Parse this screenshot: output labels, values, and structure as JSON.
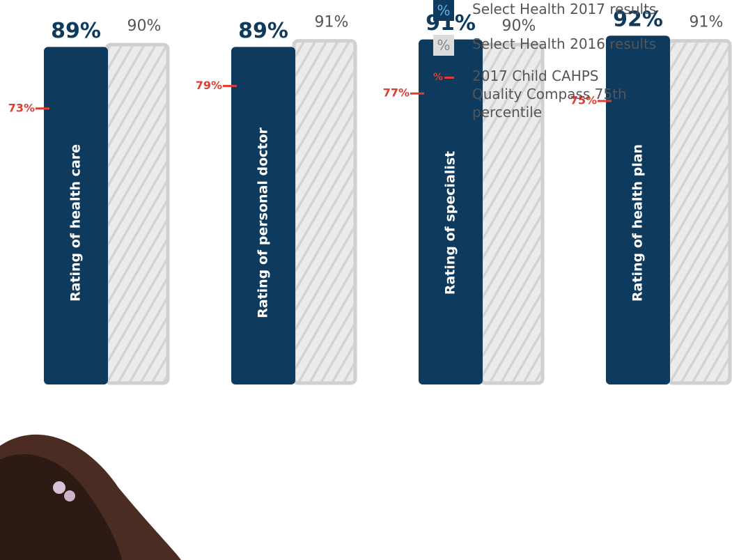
{
  "chart_data": {
    "type": "bar",
    "categories": [
      "Rating of health care",
      "Rating of personal doctor",
      "Rating of specialist",
      "Rating of health plan"
    ],
    "series": [
      {
        "name": "Select Health 2017 results",
        "color": "#0e3a5d",
        "values": [
          89,
          89,
          91,
          92
        ],
        "value_labels": [
          "89%",
          "89%",
          "91%",
          "92%"
        ]
      },
      {
        "name": "Select Health 2016 results",
        "color": "#dcdcdc",
        "values": [
          90,
          91,
          90,
          91
        ],
        "value_labels": [
          "90%",
          "91%",
          "90%",
          "91%"
        ]
      },
      {
        "name": "2017 Child CAHPS  Quality Compass 75th percentile",
        "color": "#e03c31",
        "values": [
          73,
          79,
          77,
          75
        ],
        "value_labels": [
          "73%",
          "79%",
          "77%",
          "75%"
        ]
      }
    ],
    "legend_symbol": "%"
  }
}
